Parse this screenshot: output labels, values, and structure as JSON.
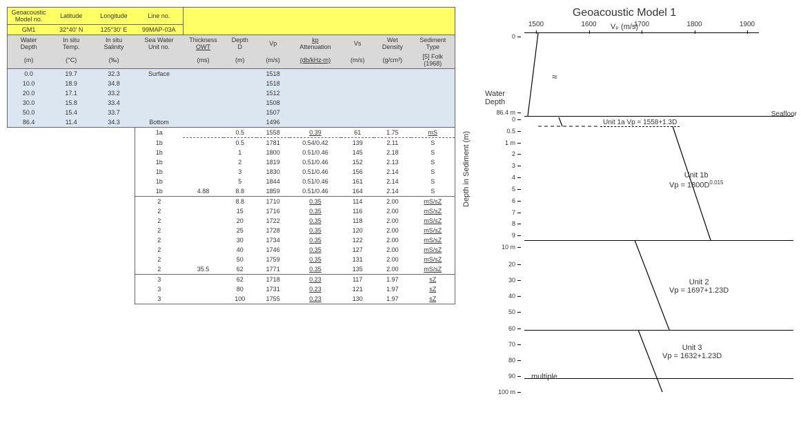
{
  "table": {
    "header1": {
      "cols": [
        "Geoacoustic\nModel no.",
        "Latitude",
        "Longitude",
        "Line no."
      ],
      "vals": [
        "GM1",
        "32°40' N",
        "125°30' E",
        "99MAP-03A"
      ]
    },
    "header2": {
      "line1": [
        "Water\nDepth",
        "In situ\nTemp.",
        "In situ\nSalinity",
        "Sea Water\nUnit no.",
        "Thickness\nOWT",
        "Depth\nD",
        "Vp",
        "kp\nAttenuation",
        "Vs",
        "Wet\nDensity",
        "Sediment\nType"
      ],
      "units": [
        "(m)",
        "(°C)",
        "(‰)",
        "",
        "(ms)",
        "(m)",
        "(m/s)",
        "(db/kHz-m)",
        "(m/s)",
        "(g/cm³)",
        "[5] Folk\n(1968)"
      ]
    },
    "water_rows": [
      [
        "0.0",
        "19.7",
        "32.3",
        "Surface",
        "",
        "",
        "1518",
        "",
        "",
        "",
        ""
      ],
      [
        "10.0",
        "18.9",
        "34.8",
        "",
        "",
        "",
        "1518",
        "",
        "",
        "",
        ""
      ],
      [
        "20.0",
        "17.1",
        "33.2",
        "",
        "",
        "",
        "1512",
        "",
        "",
        "",
        ""
      ],
      [
        "30.0",
        "15.8",
        "33.4",
        "",
        "",
        "",
        "1508",
        "",
        "",
        "",
        ""
      ],
      [
        "50.0",
        "15.4",
        "33.7",
        "",
        "",
        "",
        "1507",
        "",
        "",
        "",
        ""
      ],
      [
        "86.4",
        "11.4",
        "34.3",
        "Bottom",
        "",
        "",
        "1496",
        "",
        "",
        "",
        ""
      ]
    ],
    "unit1a_row": [
      "",
      "",
      "",
      "1a",
      "",
      "0.5",
      "1558",
      "0.39",
      "61",
      "1.75",
      "mS"
    ],
    "unit1b_rows": [
      [
        "",
        "",
        "",
        "1b",
        "",
        "0.5",
        "1781",
        "0.54/0.42",
        "139",
        "2.11",
        "S"
      ],
      [
        "",
        "",
        "",
        "1b",
        "",
        "1",
        "1800",
        "0.51/0.46",
        "145",
        "2.18",
        "S"
      ],
      [
        "",
        "",
        "",
        "1b",
        "",
        "2",
        "1819",
        "0.51/0.46",
        "152",
        "2.13",
        "S"
      ],
      [
        "",
        "",
        "",
        "1b",
        "",
        "3",
        "1830",
        "0.51/0.46",
        "156",
        "2.14",
        "S"
      ],
      [
        "",
        "",
        "",
        "1b",
        "",
        "5",
        "1844",
        "0.51/0.46",
        "161",
        "2.14",
        "S"
      ],
      [
        "",
        "",
        "",
        "1b",
        "4.88",
        "8.8",
        "1859",
        "0.51/0.46",
        "164",
        "2.14",
        "S"
      ]
    ],
    "unit2_rows": [
      [
        "",
        "",
        "",
        "2",
        "",
        "8.8",
        "1710",
        "0.35",
        "114",
        "2.00",
        "mS/sZ"
      ],
      [
        "",
        "",
        "",
        "2",
        "",
        "15",
        "1716",
        "0.35",
        "116",
        "2.00",
        "mS/sZ"
      ],
      [
        "",
        "",
        "",
        "2",
        "",
        "20",
        "1722",
        "0.35",
        "118",
        "2.00",
        "mS/sZ"
      ],
      [
        "",
        "",
        "",
        "2",
        "",
        "25",
        "1728",
        "0.35",
        "120",
        "2.00",
        "mS/sZ"
      ],
      [
        "",
        "",
        "",
        "2",
        "",
        "30",
        "1734",
        "0.35",
        "122",
        "2.00",
        "mS/sZ"
      ],
      [
        "",
        "",
        "",
        "2",
        "",
        "40",
        "1746",
        "0.35",
        "127",
        "2.00",
        "mS/sZ"
      ],
      [
        "",
        "",
        "",
        "2",
        "",
        "50",
        "1759",
        "0.35",
        "131",
        "2.00",
        "mS/sZ"
      ],
      [
        "",
        "",
        "",
        "2",
        "35.5",
        "62",
        "1771",
        "0.35",
        "135",
        "2.00",
        "mS/sZ"
      ]
    ],
    "unit3_rows": [
      [
        "",
        "",
        "",
        "3",
        "",
        "62",
        "1718",
        "0.23",
        "117",
        "1.97",
        "sZ"
      ],
      [
        "",
        "",
        "",
        "3",
        "",
        "80",
        "1731",
        "0.23",
        "121",
        "1.97",
        "sZ"
      ],
      [
        "",
        "",
        "",
        "3",
        "",
        "100",
        "1755",
        "0.23",
        "130",
        "1.97",
        "sZ"
      ]
    ]
  },
  "chart": {
    "title": "Geoacoustic Model  1",
    "xaxis_title": "Vₚ (m/s)",
    "xticks": [
      1500,
      1600,
      1700,
      1800,
      1900
    ],
    "yaxis_title": "Depth in Sediment (m)",
    "water_label": "Water\nDepth",
    "water_ticks": [
      "0",
      "86.4 m"
    ],
    "sed_ticks_block1": [
      "0",
      "0.5",
      "1 m",
      "2",
      "3",
      "4",
      "5",
      "6",
      "7",
      "8",
      "9",
      "10 m"
    ],
    "sed_ticks_block2": [
      "20",
      "30",
      "40",
      "50",
      "60",
      "70",
      "80",
      "90",
      "100 m"
    ],
    "seafloor": "Seafloor",
    "unit1a": "Unit 1a  Vp = 1558+1.3D",
    "unit1b_a": "Unit 1b",
    "unit1b_b": "Vp = 1800D",
    "unit1b_exp": "0.015",
    "unit2_a": "Unit 2",
    "unit2_b": "Vp = 1697+1.23D",
    "unit3_a": "Unit 3",
    "unit3_b": "Vp = 1632+1.23D",
    "multiple": "multiple"
  }
}
